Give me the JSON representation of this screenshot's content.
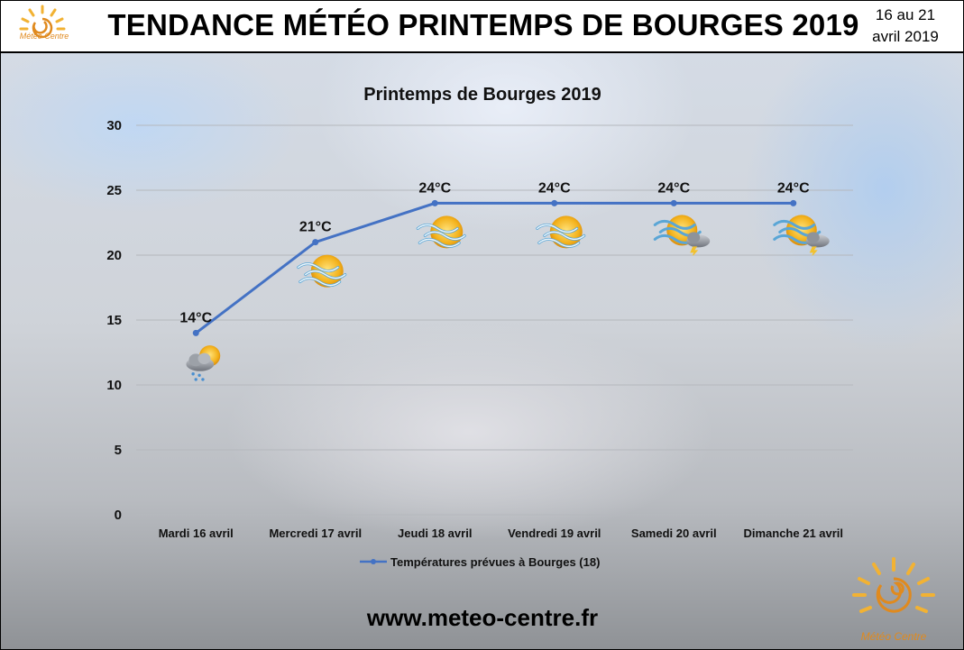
{
  "header": {
    "title": "TENDANCE MÉTÉO PRINTEMPS DE BOURGES 2019",
    "date_line1": "16 au 21",
    "date_line2": "avril 2019",
    "logo_text": "Météo Centre"
  },
  "chart_data": {
    "type": "line",
    "title": "Printemps de Bourges 2019",
    "categories": [
      "Mardi 16 avril",
      "Mercredi 17 avril",
      "Jeudi 18 avril",
      "Vendredi 19 avril",
      "Samedi 20 avril",
      "Dimanche 21 avril"
    ],
    "series": [
      {
        "name": "Températures prévues à Bourges (18)",
        "values": [
          14,
          21,
          24,
          24,
          24,
          24
        ],
        "color": "#4472c4"
      }
    ],
    "data_labels": [
      "14°C",
      "21°C",
      "24°C",
      "24°C",
      "24°C",
      "24°C"
    ],
    "weather_icons": [
      "sun-cloud-rain-icon",
      "sun-haze-icon",
      "sun-haze-icon",
      "sun-haze-icon",
      "sun-haze-storm-icon",
      "sun-haze-storm-icon"
    ],
    "yticks": [
      0,
      5,
      10,
      15,
      20,
      25,
      30
    ],
    "ylim": [
      0,
      30
    ],
    "grid": true,
    "legend_position": "bottom"
  },
  "footer": {
    "url": "www.meteo-centre.fr",
    "logo_text": "Météo Centre"
  }
}
